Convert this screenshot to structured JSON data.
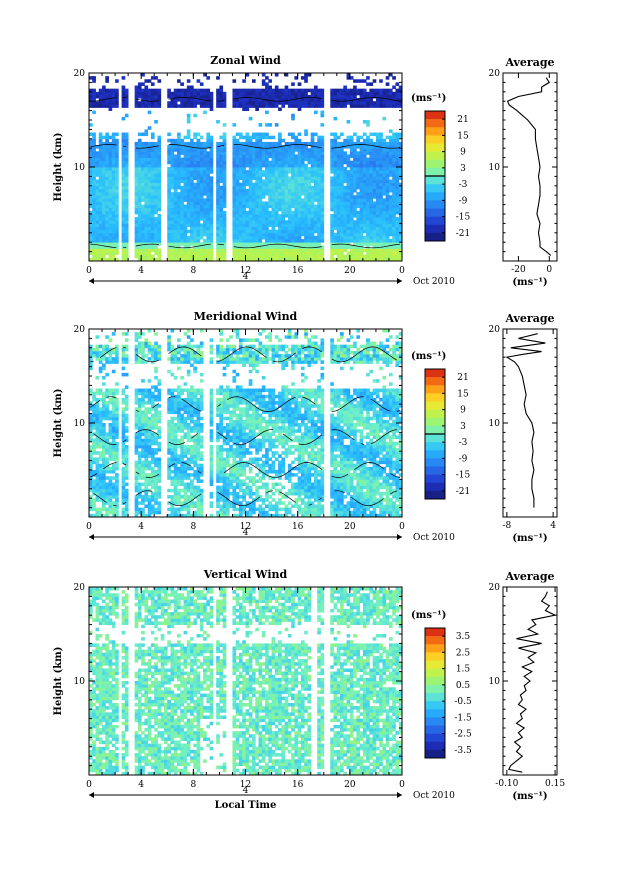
{
  "chart_data": [
    {
      "type": "heatmap",
      "title": "Zonal Wind",
      "ylabel": "Height (km)",
      "y_range": [
        0,
        20
      ],
      "y_ticks": [
        "20",
        "10"
      ],
      "x_range": [
        0,
        24
      ],
      "x_ticks": [
        "0",
        "4",
        "8",
        "12",
        "16",
        "20",
        "0"
      ],
      "day_label": "4",
      "date_label": "Oct 2010",
      "unit_label": "(ms⁻¹)",
      "colorbar_ticks": [
        "21",
        "15",
        "9",
        "3",
        "-3",
        "-9",
        "-15",
        "-21"
      ],
      "colorbar_range": [
        -24,
        24
      ],
      "contour_level": 0,
      "data_gaps_hours": [
        [
          2.2,
          2.6
        ],
        [
          3.0,
          3.4
        ],
        [
          5.6,
          6.0
        ],
        [
          9.4,
          9.8
        ],
        [
          10.5,
          10.9
        ],
        [
          18.1,
          18.5
        ]
      ],
      "profile": {
        "title": "Average",
        "y_ticks": [
          "20",
          "10"
        ],
        "x_range": [
          -30,
          5
        ],
        "x_ticks": [
          "-20",
          "0"
        ],
        "xlabel": "(ms⁻¹)",
        "heights": [
          0.6,
          1,
          1.5,
          2,
          3,
          4,
          5,
          6,
          7,
          8,
          9,
          10,
          11,
          12,
          13,
          14,
          15,
          16,
          16.6,
          17,
          17.5,
          18,
          18.5,
          19,
          19.5
        ],
        "values": [
          1,
          -2,
          -6,
          -6,
          -7,
          -6,
          -8,
          -7,
          -6,
          -6,
          -7,
          -6,
          -7,
          -8,
          -9,
          -9,
          -14,
          -21,
          -26,
          -27,
          -20,
          -5,
          -5,
          0,
          -2
        ]
      }
    },
    {
      "type": "heatmap",
      "title": "Meridional Wind",
      "ylabel": "Height (km)",
      "y_range": [
        0,
        20
      ],
      "y_ticks": [
        "20",
        "10"
      ],
      "x_range": [
        0,
        24
      ],
      "x_ticks": [
        "0",
        "4",
        "8",
        "12",
        "16",
        "20",
        "0"
      ],
      "day_label": "4",
      "date_label": "Oct 2010",
      "unit_label": "(ms⁻¹)",
      "colorbar_ticks": [
        "21",
        "15",
        "9",
        "3",
        "-3",
        "-9",
        "-15",
        "-21"
      ],
      "colorbar_range": [
        -24,
        24
      ],
      "contour_level": 0,
      "data_gaps_hours": [
        [
          2.2,
          2.6
        ],
        [
          3.0,
          3.4
        ],
        [
          5.6,
          6.0
        ],
        [
          8.8,
          9.2
        ],
        [
          9.4,
          9.8
        ],
        [
          18.1,
          18.5
        ]
      ],
      "profile": {
        "title": "Average",
        "y_ticks": [
          "20",
          "10"
        ],
        "x_range": [
          -9,
          5
        ],
        "x_ticks": [
          "-8",
          "4"
        ],
        "xlabel": "(ms⁻¹)",
        "heights": [
          1,
          2,
          3,
          4,
          5,
          6,
          7,
          8,
          9,
          10,
          11,
          12,
          13,
          14,
          15,
          16,
          16.5,
          17,
          17.3,
          17.6,
          18,
          18.5,
          19,
          19.5
        ],
        "values": [
          -1,
          -1,
          -1.5,
          -1.5,
          -1,
          -1.5,
          -1.2,
          -1.5,
          -1,
          -1.5,
          -3,
          -3.5,
          -3,
          -3.5,
          -4,
          -5,
          -6,
          -8,
          -4,
          1,
          -7,
          2,
          -5,
          0
        ]
      }
    },
    {
      "type": "heatmap",
      "title": "Vertical Wind",
      "ylabel": "Height (km)",
      "y_range": [
        0,
        20
      ],
      "y_ticks": [
        "20",
        "10"
      ],
      "x_range": [
        0,
        24
      ],
      "x_ticks": [
        "0",
        "4",
        "8",
        "12",
        "16",
        "20",
        "0"
      ],
      "xlabel": "Local Time",
      "day_label": "4",
      "date_label": "Oct 2010",
      "unit_label": "(ms⁻¹)",
      "colorbar_ticks": [
        "3.5",
        "2.5",
        "1.5",
        "0.5",
        "-0.5",
        "-1.5",
        "-2.5",
        "-3.5"
      ],
      "colorbar_range": [
        -4,
        4
      ],
      "data_gaps_hours": [
        [
          2.2,
          2.6
        ],
        [
          3.0,
          3.4
        ],
        [
          9.4,
          9.8
        ],
        [
          10.5,
          10.9
        ],
        [
          17.0,
          17.4
        ],
        [
          18.1,
          18.5
        ]
      ],
      "profile": {
        "title": "Average",
        "y_ticks": [
          "20",
          "10"
        ],
        "x_range": [
          -0.12,
          0.16
        ],
        "x_ticks": [
          "-0.10",
          "0.15"
        ],
        "xlabel": "(ms⁻¹)",
        "heights": [
          0.3,
          0.6,
          1,
          1.5,
          2,
          2.5,
          3,
          3.5,
          4,
          4.5,
          5,
          5.5,
          6,
          6.5,
          7,
          7.5,
          8,
          8.5,
          9,
          9.5,
          10,
          10.5,
          11,
          11.5,
          12,
          12.5,
          13,
          13.5,
          14,
          14.5,
          15,
          15.5,
          16,
          16.5,
          17,
          17.5,
          18,
          18.5,
          19,
          19.5
        ],
        "values": [
          -0.02,
          -0.09,
          -0.08,
          -0.05,
          -0.02,
          -0.05,
          -0.03,
          -0.06,
          -0.02,
          -0.04,
          -0.01,
          -0.05,
          -0.02,
          -0.03,
          0,
          -0.04,
          -0.02,
          -0.03,
          0,
          -0.01,
          0.02,
          -0.01,
          0.03,
          -0.02,
          0.04,
          0.01,
          0.05,
          -0.04,
          0.08,
          -0.05,
          0.06,
          0.01,
          0.05,
          0.03,
          0.15,
          0.1,
          0.12,
          0.08,
          0.1,
          0.11
        ]
      }
    }
  ]
}
